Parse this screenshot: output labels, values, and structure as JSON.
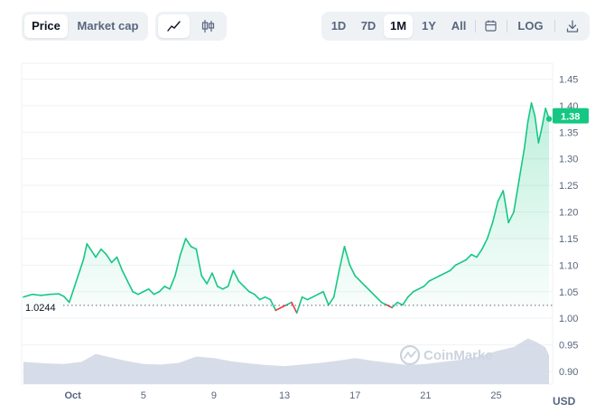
{
  "toolbar": {
    "metric_tabs": [
      {
        "label": "Price",
        "active": true
      },
      {
        "label": "Market cap",
        "active": false
      }
    ],
    "chart_type_icons": [
      "line-chart-icon",
      "candlestick-icon"
    ],
    "ranges": [
      {
        "label": "1D",
        "active": false
      },
      {
        "label": "7D",
        "active": false
      },
      {
        "label": "1M",
        "active": true
      },
      {
        "label": "1Y",
        "active": false
      },
      {
        "label": "All",
        "active": false
      }
    ],
    "calendar_icon": "calendar-icon",
    "log_label": "LOG",
    "download_icon": "download-icon"
  },
  "watermark": "CoinMarke",
  "reference_label": "1.0244",
  "current_price_label": "1.38",
  "currency": "USD",
  "colors": {
    "up": "#16c784",
    "down": "#ea3943",
    "volume": "#cfd6e4",
    "muted": "#58667e"
  },
  "chart_data": {
    "type": "line",
    "y_tick_labels": [
      "1.45",
      "1.40",
      "1.35",
      "1.30",
      "1.25",
      "1.20",
      "1.15",
      "1.10",
      "1.05",
      "1.00",
      "0.95",
      "0.90"
    ],
    "x_tick_labels": [
      "Oct",
      "5",
      "9",
      "13",
      "17",
      "21",
      "25"
    ],
    "x_tick_days": [
      1,
      5,
      9,
      13,
      17,
      21,
      25
    ],
    "ylim": [
      0.9,
      1.45
    ],
    "xlim": [
      -1.9,
      28.2
    ],
    "reference_value": 1.0244,
    "last_value": 1.38,
    "price": {
      "x": [
        -1.8,
        -1.3,
        -0.8,
        -0.3,
        0.2,
        0.5,
        0.8,
        1.1,
        1.4,
        1.6,
        1.8,
        2.0,
        2.3,
        2.6,
        2.9,
        3.2,
        3.5,
        3.8,
        4.1,
        4.4,
        4.7,
        5.0,
        5.3,
        5.6,
        5.9,
        6.2,
        6.5,
        6.8,
        7.1,
        7.4,
        7.7,
        8.0,
        8.3,
        8.6,
        8.9,
        9.2,
        9.5,
        9.8,
        10.1,
        10.4,
        10.7,
        11.0,
        11.3,
        11.6,
        11.9,
        12.2,
        12.5,
        12.8,
        13.1,
        13.4,
        13.7,
        14.0,
        14.3,
        14.6,
        14.9,
        15.2,
        15.5,
        15.8,
        16.1,
        16.4,
        16.7,
        17.0,
        17.3,
        17.6,
        17.9,
        18.2,
        18.5,
        18.8,
        19.1,
        19.4,
        19.7,
        20.0,
        20.3,
        20.6,
        20.9,
        21.2,
        21.5,
        21.8,
        22.1,
        22.4,
        22.7,
        23.0,
        23.3,
        23.6,
        23.9,
        24.2,
        24.5,
        24.8,
        25.1,
        25.4,
        25.7,
        26.0,
        26.3,
        26.6,
        26.8,
        27.0,
        27.2,
        27.4,
        27.6,
        27.8,
        28.0
      ],
      "y": [
        1.04,
        1.045,
        1.043,
        1.045,
        1.046,
        1.041,
        1.03,
        1.06,
        1.09,
        1.11,
        1.14,
        1.13,
        1.115,
        1.13,
        1.12,
        1.105,
        1.115,
        1.09,
        1.07,
        1.05,
        1.045,
        1.05,
        1.055,
        1.045,
        1.05,
        1.06,
        1.055,
        1.08,
        1.12,
        1.15,
        1.135,
        1.13,
        1.08,
        1.065,
        1.085,
        1.06,
        1.055,
        1.06,
        1.09,
        1.07,
        1.06,
        1.05,
        1.045,
        1.035,
        1.04,
        1.035,
        1.015,
        1.02,
        1.025,
        1.03,
        1.01,
        1.04,
        1.035,
        1.04,
        1.045,
        1.05,
        1.025,
        1.04,
        1.09,
        1.135,
        1.1,
        1.08,
        1.07,
        1.06,
        1.05,
        1.04,
        1.03,
        1.025,
        1.02,
        1.03,
        1.025,
        1.04,
        1.05,
        1.055,
        1.06,
        1.07,
        1.075,
        1.08,
        1.085,
        1.09,
        1.1,
        1.105,
        1.11,
        1.12,
        1.115,
        1.13,
        1.15,
        1.18,
        1.22,
        1.24,
        1.18,
        1.2,
        1.26,
        1.32,
        1.37,
        1.405,
        1.38,
        1.33,
        1.36,
        1.395,
        1.375
      ]
    },
    "volume": {
      "x": [
        -1.8,
        -0.5,
        0.5,
        1.5,
        2.3,
        3.2,
        4.0,
        5.0,
        6.0,
        7.0,
        8.0,
        9.0,
        10.0,
        11.0,
        12.0,
        13.0,
        14.0,
        15.0,
        16.0,
        17.0,
        18.0,
        19.0,
        20.0,
        21.0,
        22.0,
        23.0,
        24.0,
        25.0,
        26.0,
        26.8,
        27.3,
        27.8,
        28.0
      ],
      "y": [
        0.918,
        0.915,
        0.914,
        0.918,
        0.933,
        0.926,
        0.92,
        0.914,
        0.913,
        0.916,
        0.928,
        0.925,
        0.919,
        0.915,
        0.912,
        0.91,
        0.913,
        0.916,
        0.92,
        0.925,
        0.92,
        0.916,
        0.912,
        0.914,
        0.918,
        0.922,
        0.928,
        0.938,
        0.946,
        0.962,
        0.955,
        0.945,
        0.93
      ]
    }
  }
}
